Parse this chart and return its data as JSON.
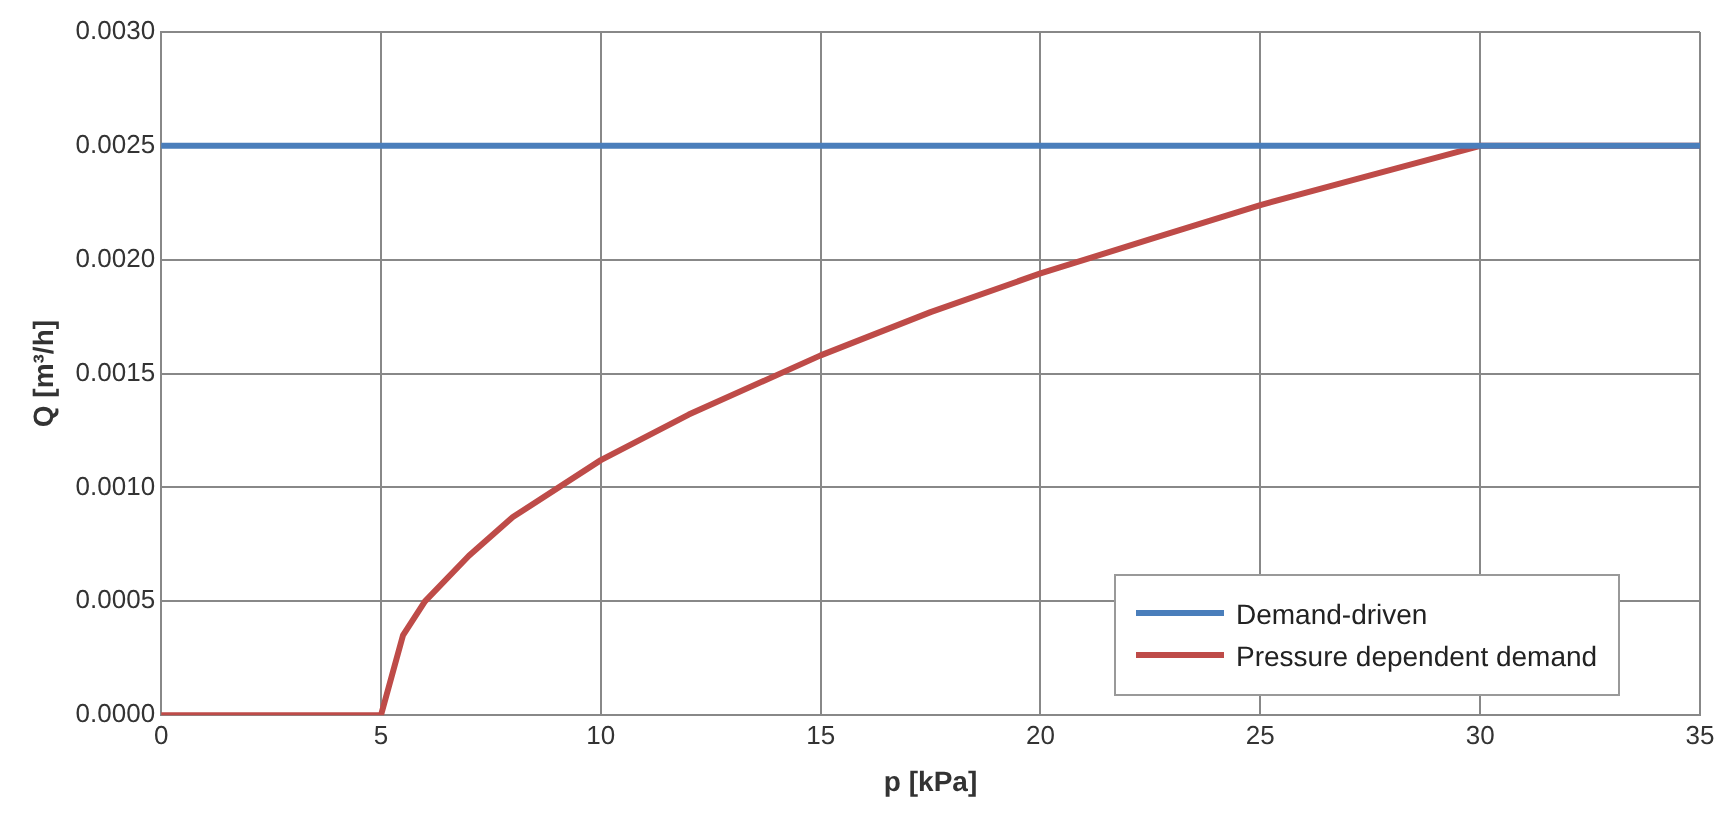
{
  "chart_data": {
    "type": "line",
    "xlabel": "p [kPa]",
    "ylabel": "Q [m³/h]",
    "xlim": [
      0,
      35
    ],
    "xticks": [
      0,
      5,
      10,
      15,
      20,
      25,
      30,
      35
    ],
    "ylim": [
      0,
      0.003
    ],
    "yticks": [
      {
        "value": 0,
        "label": "0.0000"
      },
      {
        "value": 0.0005,
        "label": "0.0005"
      },
      {
        "value": 0.001,
        "label": "0.0010"
      },
      {
        "value": 0.0015,
        "label": "0.0015"
      },
      {
        "value": 0.002,
        "label": "0.0020"
      },
      {
        "value": 0.0025,
        "label": "0.0025"
      },
      {
        "value": 0.003,
        "label": "0.0030"
      }
    ],
    "grid": true,
    "legend": "bottom right",
    "marker": "none",
    "line_style": "solid",
    "series": [
      {
        "name": "Demand-driven",
        "color": "#4a7ebb",
        "x": [
          0,
          35
        ],
        "values": [
          0.0025,
          0.0025
        ]
      },
      {
        "name": "Pressure dependent demand",
        "color": "#be4b48",
        "x": [
          0,
          5,
          5.5,
          6,
          7,
          8,
          10,
          12,
          15,
          17.5,
          20,
          22.5,
          25,
          27.5,
          30,
          35
        ],
        "values": [
          0,
          0,
          0.00035,
          0.0005,
          0.0007,
          0.00087,
          0.00112,
          0.00132,
          0.00158,
          0.00177,
          0.00194,
          0.00209,
          0.00224,
          0.00237,
          0.0025,
          0.0025
        ]
      }
    ]
  }
}
